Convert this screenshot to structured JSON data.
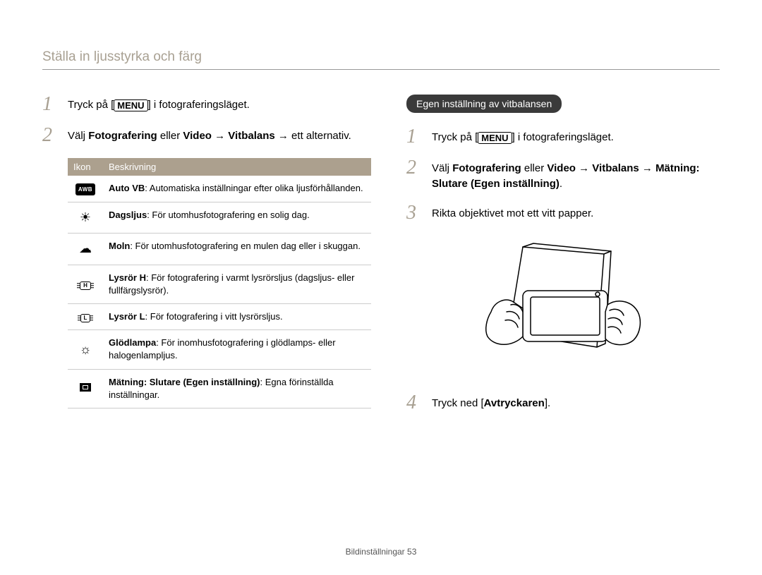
{
  "page": {
    "title": "Ställa in ljusstyrka och färg",
    "footer_label": "Bildinställningar",
    "footer_page": "53"
  },
  "left": {
    "step1": {
      "num": "1",
      "text_before": "Tryck på [",
      "menu": "MENU",
      "text_after": "] i fotograferingsläget."
    },
    "step2_num": "2",
    "step2_parts": {
      "a": "Välj ",
      "b": "Fotografering",
      "c": " eller ",
      "d": "Video",
      "e": " → ",
      "f": "Vitbalans",
      "g": " → ett alternativ."
    },
    "table": {
      "headers": {
        "icon": "Ikon",
        "desc": "Beskrivning"
      },
      "rows": [
        {
          "icon_type": "awb",
          "icon_text": "AWB",
          "bold": "Auto VB",
          "rest": ": Automatiska inställningar efter olika ljusförhållanden."
        },
        {
          "icon_type": "unicode",
          "icon_text": "☀",
          "bold": "Dagsljus",
          "rest": ": För utomhusfotografering en solig dag."
        },
        {
          "icon_type": "unicode",
          "icon_text": "☁",
          "bold": "Moln",
          "rest": ": För utomhusfotografering en mulen dag eller i skuggan."
        },
        {
          "icon_type": "lysror",
          "icon_text": "H",
          "bold": "Lysrör H",
          "rest": ": För fotografering i varmt lysrörsljus (dagsljus- eller fullfärgslysrör)."
        },
        {
          "icon_type": "lysror",
          "icon_text": "L",
          "bold": "Lysrör L",
          "rest": ": För fotografering i vitt lysrörsljus."
        },
        {
          "icon_type": "unicode",
          "icon_text": "☼",
          "bold": "Glödlampa",
          "rest": ": För inomhusfotografering i glödlamps- eller halogenlampljus."
        },
        {
          "icon_type": "square",
          "icon_text": "",
          "bold": "Mätning: Slutare (Egen inställning)",
          "rest": ": Egna förinställda inställningar."
        }
      ]
    }
  },
  "right": {
    "pill": "Egen inställning av vitbalansen",
    "step1": {
      "num": "1",
      "text_before": "Tryck på [",
      "menu": "MENU",
      "text_after": "] i fotograferingsläget."
    },
    "step2_num": "2",
    "step2_parts": {
      "a": "Välj ",
      "b": "Fotografering",
      "c": " eller ",
      "d": "Video",
      "e": " → ",
      "f": "Vitbalans",
      "g": " → ",
      "h": "Mätning: Slutare (Egen inställning)",
      "i": "."
    },
    "step3": {
      "num": "3",
      "text": "Rikta objektivet mot ett vitt papper."
    },
    "step4": {
      "num": "4",
      "text_a": "Tryck ned [",
      "bold": "Avtryckaren",
      "text_b": "]."
    }
  },
  "colors": {
    "heading": "#a8a092",
    "step_num": "#a8a092",
    "table_header_bg": "#aca08e",
    "pill_bg": "#3a3a3a"
  }
}
